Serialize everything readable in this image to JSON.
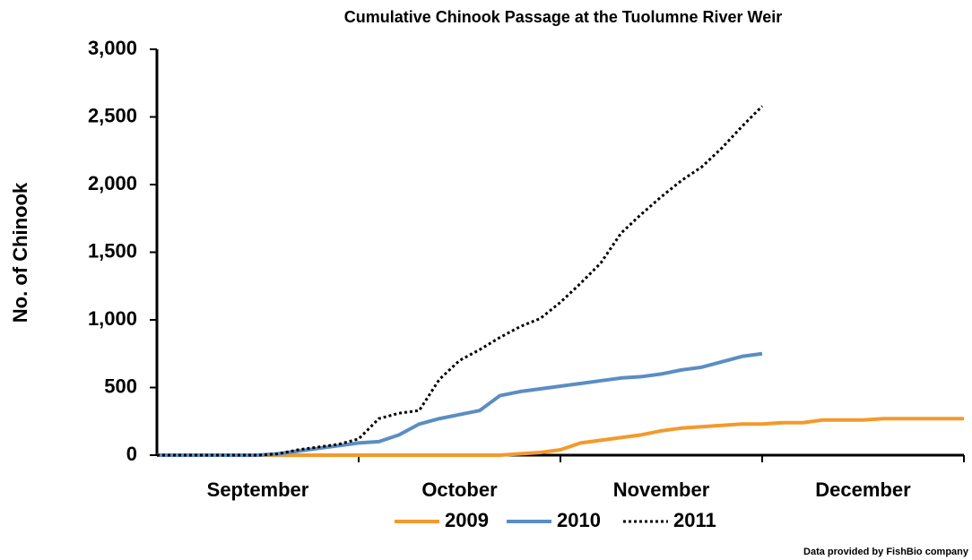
{
  "chart_data": {
    "type": "line",
    "title": "Cumulative Chinook Passage at the Tuolumne River Weir",
    "y_label": "No. of Chinook",
    "note": "Data provided by FishBio company",
    "categories": [
      null,
      null,
      null,
      null,
      null,
      "September",
      null,
      null,
      null,
      null,
      null,
      null,
      null,
      null,
      null,
      "October",
      null,
      null,
      null,
      null,
      null,
      null,
      null,
      null,
      null,
      "November",
      null,
      null,
      null,
      null,
      null,
      null,
      null,
      null,
      null,
      "December",
      null,
      null,
      null,
      null,
      null
    ],
    "ylim": [
      0,
      3000
    ],
    "yticks": [
      0,
      500,
      {
        "value": 1000,
        "label": "1,000"
      },
      {
        "value": 1500,
        "label": "1,500"
      },
      {
        "value": 2000,
        "label": "2,000"
      },
      {
        "value": 2500,
        "label": "2,500"
      },
      {
        "value": 3000,
        "label": "3,000"
      }
    ],
    "legend": "bottom",
    "series": [
      {
        "name": "2009",
        "color": "#f39a2b",
        "style": "solid",
        "values": [
          0,
          0,
          0,
          0,
          0,
          0,
          0,
          0,
          0,
          0,
          0,
          0,
          0,
          0,
          0,
          0,
          0,
          0,
          10,
          20,
          40,
          90,
          110,
          130,
          150,
          180,
          200,
          210,
          220,
          230,
          230,
          240,
          240,
          260,
          260,
          260,
          270,
          270,
          270,
          270,
          270
        ]
      },
      {
        "name": "2010",
        "color": "#5b8dc4",
        "style": "solid",
        "values": [
          0,
          0,
          0,
          0,
          0,
          0,
          10,
          30,
          50,
          70,
          90,
          100,
          150,
          230,
          270,
          300,
          330,
          440,
          470,
          490,
          510,
          530,
          550,
          570,
          580,
          600,
          630,
          650,
          690,
          730,
          750,
          null,
          null,
          null,
          null,
          null,
          null,
          null,
          null,
          null,
          null
        ]
      },
      {
        "name": "2011",
        "color": "#000000",
        "style": "dotted",
        "values": [
          0,
          0,
          0,
          0,
          0,
          0,
          10,
          40,
          60,
          80,
          120,
          270,
          310,
          330,
          560,
          700,
          780,
          870,
          950,
          1010,
          1130,
          1270,
          1420,
          1640,
          1780,
          1910,
          2030,
          2130,
          2270,
          2430,
          2580,
          null,
          null,
          null,
          null,
          null,
          null,
          null,
          null,
          null,
          null
        ]
      }
    ]
  }
}
